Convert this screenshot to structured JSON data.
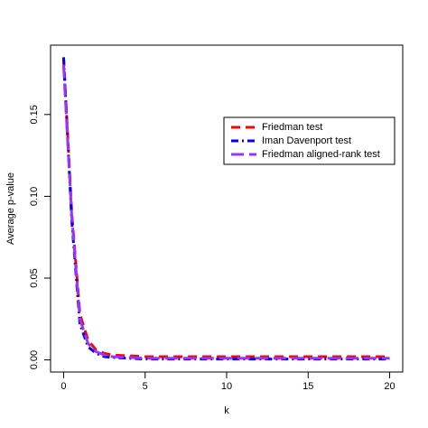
{
  "chart_data": {
    "type": "line",
    "xlabel": "k",
    "ylabel": "Average p-value",
    "x": [
      0,
      0.5,
      1,
      1.5,
      2,
      2.5,
      3,
      4,
      5,
      6,
      7,
      8,
      9,
      10,
      11,
      12,
      13,
      14,
      15,
      16,
      17,
      18,
      19,
      20
    ],
    "series": [
      {
        "name": "Friedman test",
        "color": "#ff0000",
        "dash": "10,6",
        "values": [
          0.185,
          0.09,
          0.028,
          0.012,
          0.006,
          0.004,
          0.003,
          0.0025,
          0.002,
          0.002,
          0.002,
          0.002,
          0.002,
          0.002,
          0.002,
          0.002,
          0.002,
          0.002,
          0.002,
          0.002,
          0.002,
          0.002,
          0.002,
          0.002
        ]
      },
      {
        "name": "Iman Davenport test",
        "color": "#0000ff",
        "dash": "8,4,2,4",
        "values": [
          0.185,
          0.085,
          0.022,
          0.008,
          0.004,
          0.002,
          0.0015,
          0.001,
          0.0005,
          0.0005,
          0.0005,
          0.0005,
          0.0005,
          0.0005,
          0.0005,
          0.0005,
          0.0005,
          0.0005,
          0.0005,
          0.0005,
          0.0005,
          0.0005,
          0.0005,
          0.0005
        ]
      },
      {
        "name": "Friedman aligned-rank test",
        "color": "#9933ff",
        "dash": "14,6",
        "values": [
          0.18,
          0.088,
          0.025,
          0.01,
          0.005,
          0.003,
          0.002,
          0.0015,
          0.001,
          0.001,
          0.001,
          0.001,
          0.001,
          0.001,
          0.001,
          0.001,
          0.001,
          0.001,
          0.001,
          0.001,
          0.001,
          0.001,
          0.001,
          0.001
        ]
      }
    ],
    "xlim": [
      -0.8,
      20.8
    ],
    "ylim": [
      -0.0074,
      0.1924
    ],
    "xticks": [
      0,
      5,
      10,
      15,
      20
    ],
    "yticks": [
      {
        "value": 0,
        "label": "0.00"
      },
      {
        "value": 0.05,
        "label": "0.05"
      },
      {
        "value": 0.1,
        "label": "0.10"
      },
      {
        "value": 0.15,
        "label": "0.15"
      }
    ],
    "legend": "top-right"
  }
}
